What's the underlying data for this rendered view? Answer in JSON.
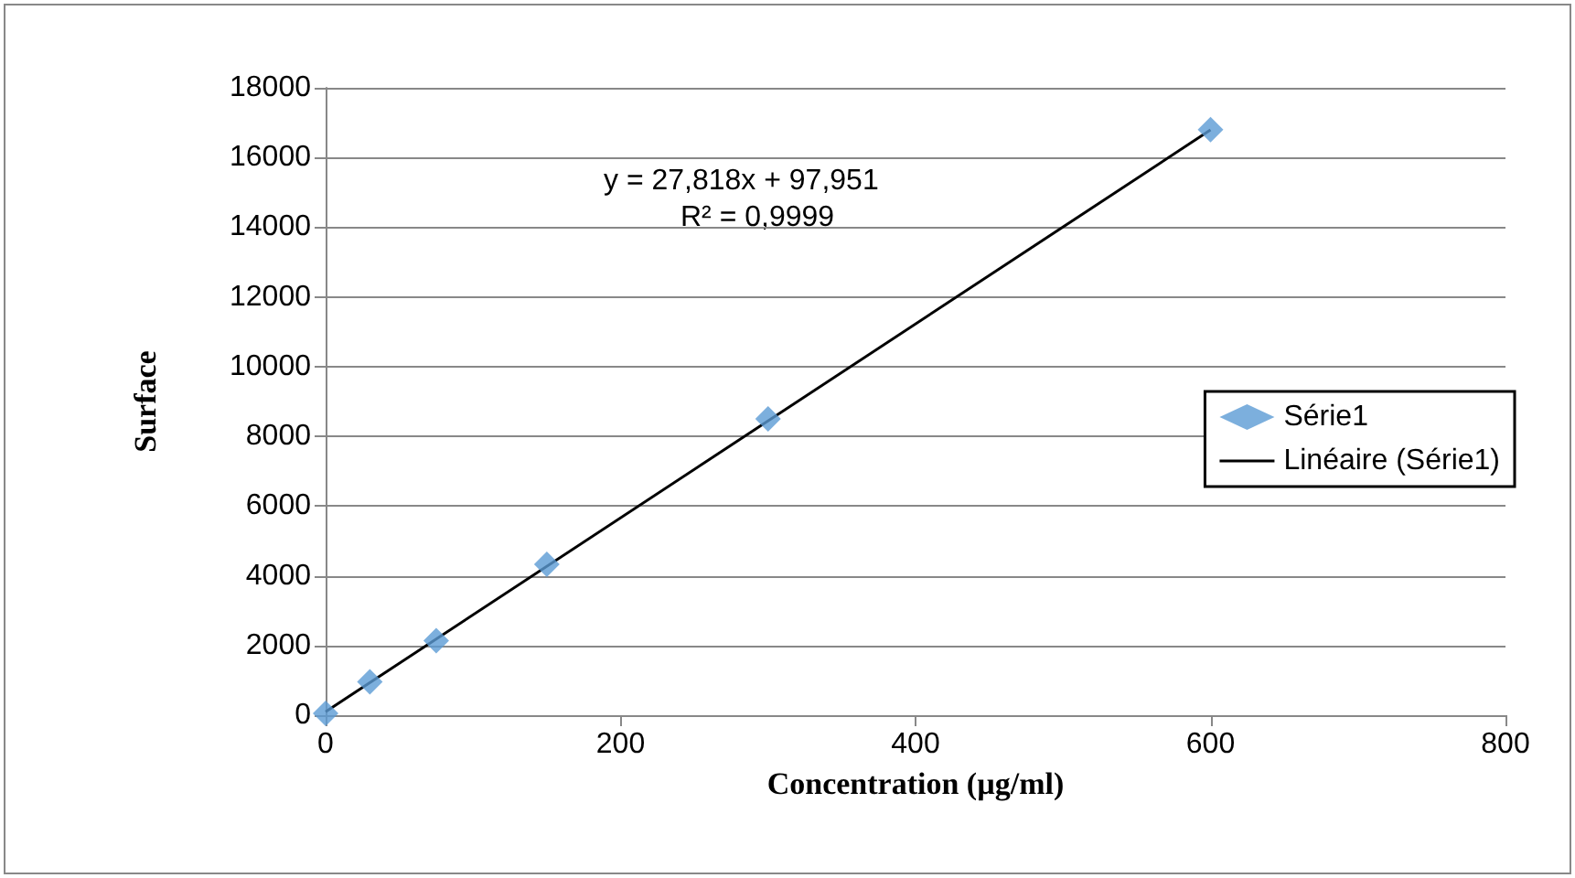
{
  "chart_data": {
    "type": "scatter",
    "xlabel": "Concentration (µg/ml)",
    "ylabel": "Surface",
    "x": [
      0,
      30,
      75,
      150,
      300,
      600
    ],
    "series": [
      {
        "name": "Série1",
        "color": "#5b9bd5",
        "marker": "diamond",
        "values": [
          50,
          960,
          2140,
          4330,
          8500,
          16800
        ]
      },
      {
        "name": "Linéaire (Série1)",
        "type": "line",
        "color": "#000000",
        "marker": "none",
        "x": [
          0,
          600
        ],
        "values": [
          100,
          16790
        ]
      }
    ],
    "xlim": [
      0,
      800
    ],
    "xticks": [
      0,
      200,
      400,
      600,
      800
    ],
    "ylim": [
      0,
      18000
    ],
    "yticks": [
      0,
      2000,
      4000,
      6000,
      8000,
      10000,
      12000,
      14000,
      16000,
      18000
    ],
    "grid": "y",
    "legend": "right",
    "annotations": [
      "y = 27,818x + 97,951",
      "R² = 0,9999"
    ]
  }
}
